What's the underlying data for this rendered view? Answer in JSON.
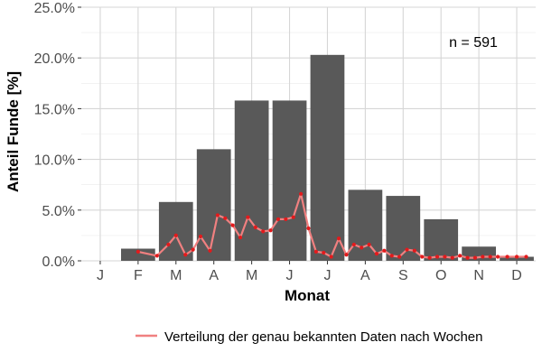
{
  "chart_data": {
    "type": "bar",
    "xlabel": "Monat",
    "ylabel": "Anteil Funde [%]",
    "ylim": [
      0,
      25
    ],
    "y_ticks": [
      "0.0%",
      "5.0%",
      "10.0%",
      "15.0%",
      "20.0%",
      "25.0%"
    ],
    "grid": true,
    "categories": [
      "J",
      "F",
      "M",
      "A",
      "M",
      "J",
      "J",
      "A",
      "S",
      "O",
      "N",
      "D"
    ],
    "values": [
      0.0,
      1.2,
      5.8,
      11.0,
      15.8,
      15.8,
      20.3,
      7.0,
      6.4,
      4.1,
      1.4,
      0.4
    ],
    "bar_color": "#595959",
    "annotation": "n = 591",
    "line_series": {
      "name": "Verteilung der genau bekannten Daten nach Wochen",
      "color": "#f08080",
      "point_color": "#e31a1c",
      "x": [
        1.0,
        1.5,
        1.8,
        2.0,
        2.25,
        2.45,
        2.65,
        2.9,
        3.1,
        3.3,
        3.5,
        3.7,
        3.9,
        4.1,
        4.3,
        4.5,
        4.7,
        4.9,
        5.1,
        5.3,
        5.5,
        5.7,
        5.9,
        6.1,
        6.3,
        6.5,
        6.7,
        6.9,
        7.1,
        7.3,
        7.5,
        7.7,
        7.9,
        8.1,
        8.3,
        8.5,
        8.7,
        8.9,
        9.1,
        9.3,
        9.5,
        9.7,
        9.9,
        10.1,
        10.3,
        10.5,
        10.75,
        11.0,
        11.25
      ],
      "y": [
        0.9,
        0.5,
        1.6,
        2.5,
        0.6,
        1.1,
        2.4,
        1.0,
        4.5,
        4.2,
        3.5,
        2.3,
        4.3,
        3.3,
        2.9,
        3.0,
        4.1,
        4.1,
        4.3,
        6.6,
        3.2,
        0.9,
        0.8,
        0.4,
        2.2,
        0.6,
        1.6,
        1.3,
        1.6,
        0.7,
        1.0,
        0.5,
        0.4,
        1.1,
        1.0,
        0.4,
        0.3,
        0.4,
        0.4,
        0.3,
        0.5,
        0.3,
        0.3,
        0.4,
        0.4,
        0.4,
        0.4,
        0.4,
        0.4
      ]
    }
  }
}
